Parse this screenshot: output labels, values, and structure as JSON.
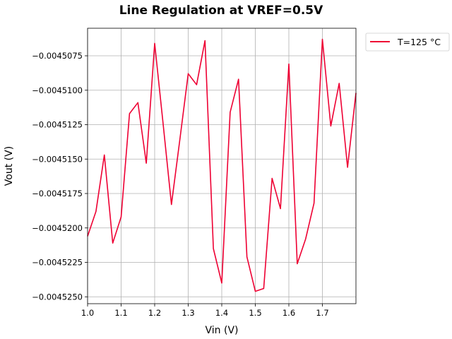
{
  "chart_data": {
    "type": "line",
    "title": "Line Regulation at VREF=0.5V",
    "xlabel": "Vin (V)",
    "ylabel": "Vout (V)",
    "xlim": [
      1.0,
      1.8
    ],
    "ylim": [
      -0.0045255,
      -0.0045055
    ],
    "xticks": [
      1.0,
      1.1,
      1.2,
      1.3,
      1.4,
      1.5,
      1.6,
      1.7
    ],
    "xtick_labels": [
      "1.0",
      "1.1",
      "1.2",
      "1.3",
      "1.4",
      "1.5",
      "1.6",
      "1.7"
    ],
    "yticks": [
      -0.004525,
      -0.0045225,
      -0.00452,
      -0.0045175,
      -0.004515,
      -0.0045125,
      -0.00451,
      -0.0045075
    ],
    "ytick_labels": [
      "−0.0045250",
      "−0.0045225",
      "−0.0045200",
      "−0.0045175",
      "−0.0045150",
      "−0.0045125",
      "−0.0045100",
      "−0.0045075"
    ],
    "grid": true,
    "legend_position": "outside-top-right",
    "series": [
      {
        "name": "T=125 °C",
        "color": "#ee0033",
        "x": [
          1.0,
          1.025,
          1.05,
          1.075,
          1.1,
          1.125,
          1.15,
          1.175,
          1.2,
          1.225,
          1.25,
          1.275,
          1.3,
          1.325,
          1.35,
          1.375,
          1.4,
          1.425,
          1.45,
          1.475,
          1.5,
          1.525,
          1.55,
          1.575,
          1.6,
          1.625,
          1.65,
          1.675,
          1.7,
          1.725,
          1.75,
          1.775,
          1.8
        ],
        "y": [
          -0.0045206,
          -0.0045188,
          -0.0045147,
          -0.0045211,
          -0.0045192,
          -0.0045117,
          -0.0045109,
          -0.0045153,
          -0.0045066,
          -0.0045124,
          -0.0045183,
          -0.0045136,
          -0.0045088,
          -0.0045096,
          -0.0045064,
          -0.0045215,
          -0.004524,
          -0.0045116,
          -0.0045092,
          -0.0045221,
          -0.0045246,
          -0.0045244,
          -0.0045164,
          -0.0045186,
          -0.0045081,
          -0.0045226,
          -0.0045208,
          -0.0045182,
          -0.0045063,
          -0.0045126,
          -0.0045095,
          -0.0045156,
          -0.0045102
        ]
      }
    ]
  }
}
